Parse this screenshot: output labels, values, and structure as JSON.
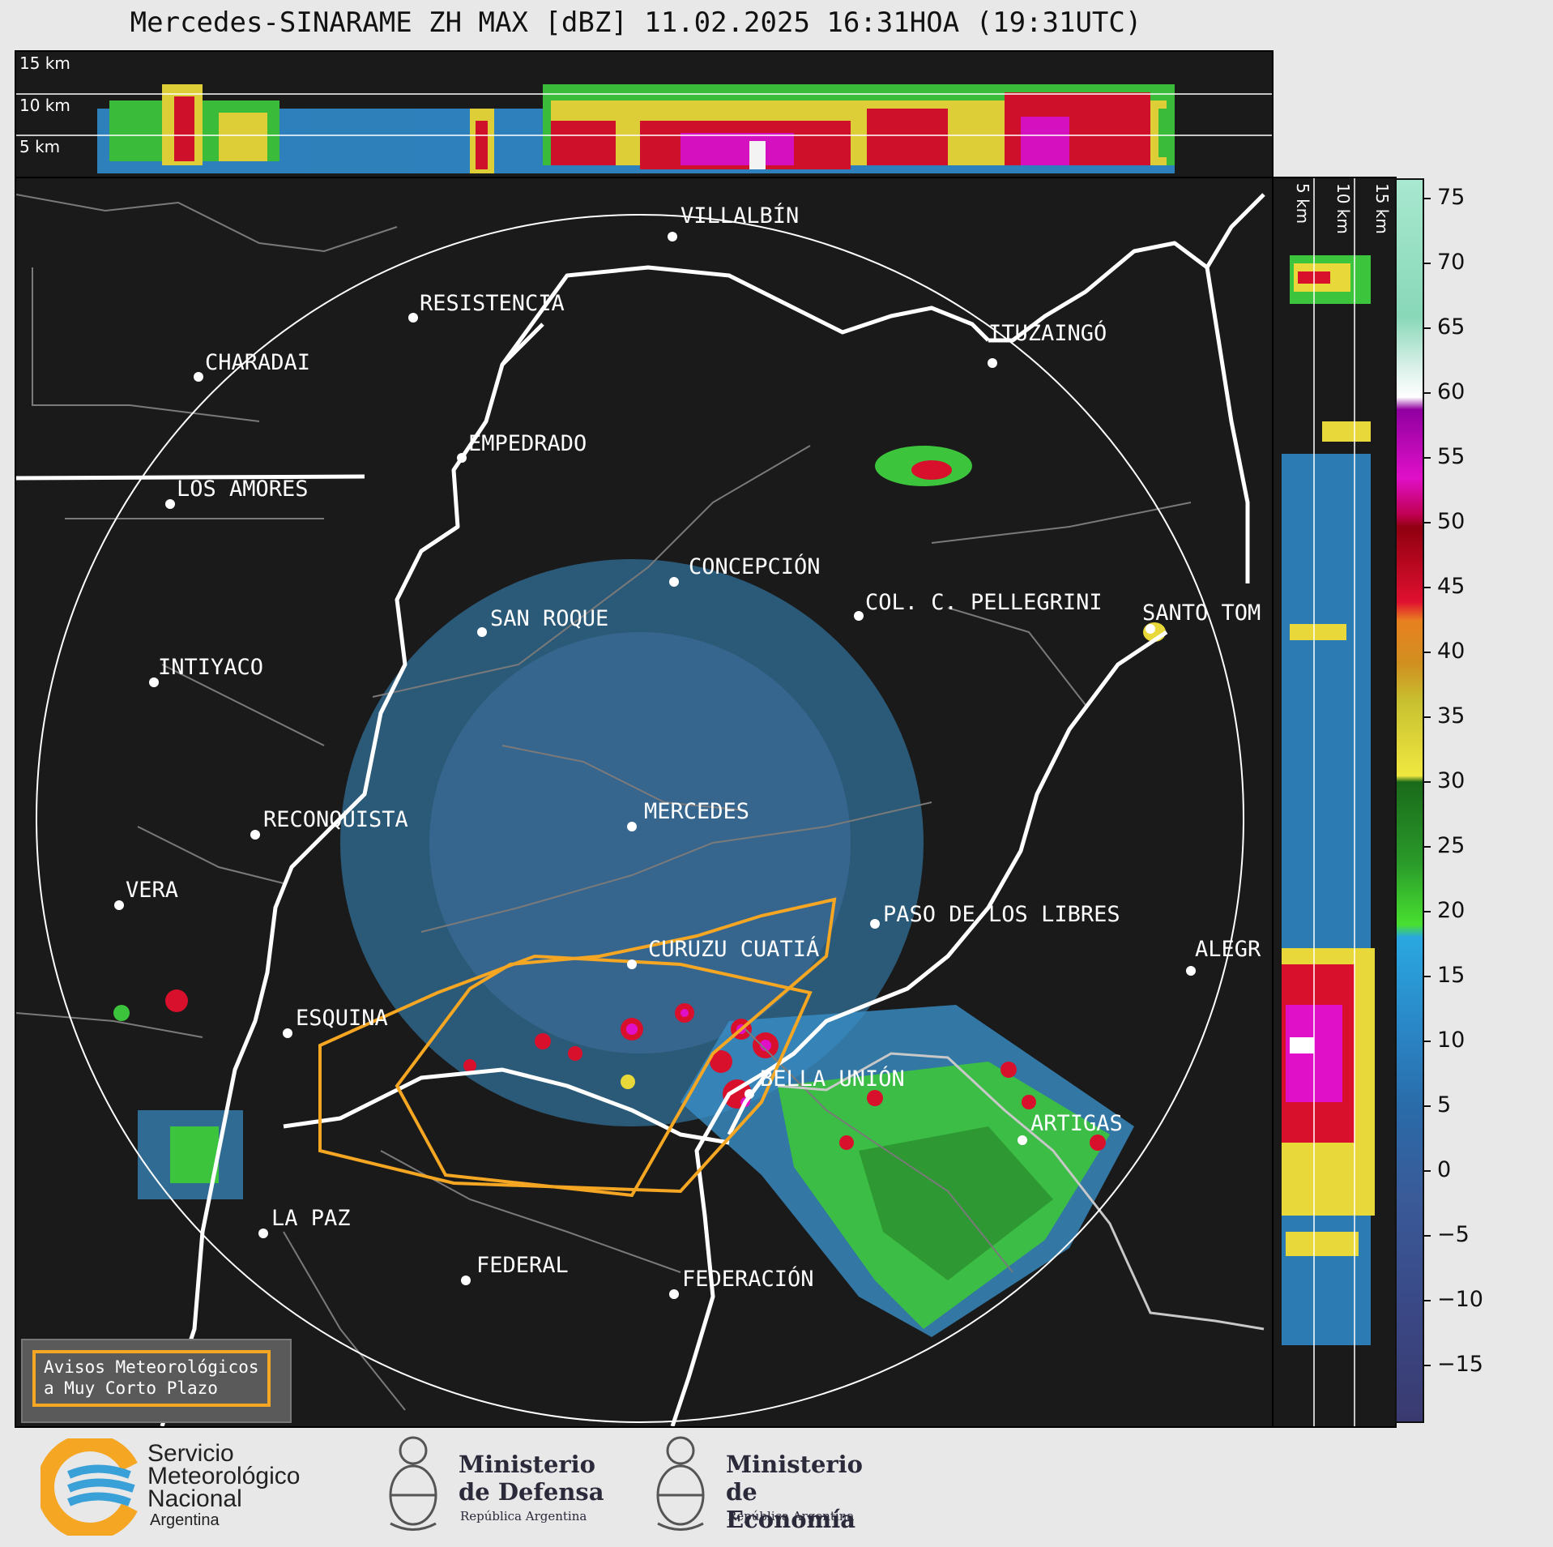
{
  "title": "Mercedes-SINARAME ZH MAX [dBZ] 11.02.2025 16:31HOA (19:31UTC)",
  "top_panel": {
    "height_labels": [
      "15 km",
      "10 km",
      "5 km"
    ]
  },
  "right_panel": {
    "height_labels": [
      "5 km",
      "10 km",
      "15 km"
    ]
  },
  "colorbar": {
    "ticks": [
      "75",
      "70",
      "65",
      "60",
      "55",
      "50",
      "45",
      "40",
      "35",
      "30",
      "25",
      "20",
      "15",
      "10",
      "5",
      "0",
      "−5",
      "−10",
      "−15"
    ],
    "min": -20,
    "max": 77
  },
  "cities": [
    {
      "name": "VILLALBÍN"
    },
    {
      "name": "RESISTENCIA"
    },
    {
      "name": "CHARADAI"
    },
    {
      "name": "ITUZAINGÓ"
    },
    {
      "name": "EMPEDRADO"
    },
    {
      "name": "LOS AMORES"
    },
    {
      "name": "CONCEPCIÓN"
    },
    {
      "name": "SAN ROQUE"
    },
    {
      "name": "COL. C. PELLEGRINI"
    },
    {
      "name": "SANTO TOM"
    },
    {
      "name": "INTIYACO"
    },
    {
      "name": "RECONQUISTA"
    },
    {
      "name": "MERCEDES"
    },
    {
      "name": "VERA"
    },
    {
      "name": "PASO DE LOS LIBRES"
    },
    {
      "name": "CURUZU CUATIÁ"
    },
    {
      "name": "ALEGR"
    },
    {
      "name": "ESQUINA"
    },
    {
      "name": "BELLA UNIÓN"
    },
    {
      "name": "ARTIGAS"
    },
    {
      "name": "LA PAZ"
    },
    {
      "name": "FEDERAL"
    },
    {
      "name": "FEDERACIÓN"
    }
  ],
  "legend": {
    "line1": "Avisos Meteorológicos",
    "line2": "a Muy Corto Plazo"
  },
  "logos": {
    "smn": {
      "line1": "Servicio",
      "line2": "Meteorológico",
      "line3": "Nacional",
      "line4": "Argentina"
    },
    "defensa": {
      "line1": "Ministerio",
      "line2": "de Defensa",
      "line3": "República Argentina"
    },
    "economia": {
      "line1": "Ministerio",
      "line2": "de Economía",
      "line3": "República Argentina"
    }
  },
  "colors": {
    "warning": "#f5a623",
    "background": "#1a1a1a",
    "rain_blue": "#3a8fc7",
    "rain_green": "#3cc43c"
  }
}
